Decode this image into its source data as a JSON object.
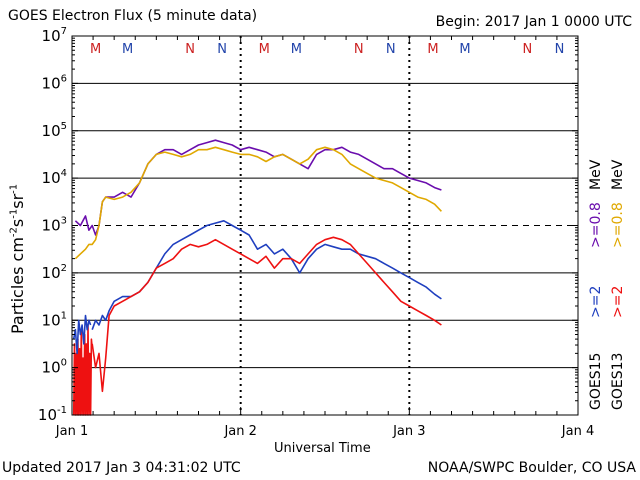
{
  "header": {
    "title": "GOES Electron Flux (5 minute data)",
    "begin": "Begin: 2017 Jan 1 0000 UTC"
  },
  "footer": {
    "updated": "Updated 2017 Jan  3 04:31:02 UTC",
    "source": "NOAA/SWPC Boulder, CO USA"
  },
  "legend": {
    "goes15_label": "GOES15",
    "goes13_label": "GOES13",
    "goes15_2mev": ">=2",
    "goes13_2mev": ">=2",
    "goes15_08mev": ">=0.8",
    "goes13_08mev": ">=0.8",
    "unit": "MeV"
  },
  "colors": {
    "goes15_08": "#6a0dad",
    "goes13_08": "#e0a800",
    "goes15_2": "#1f3fbf",
    "goes13_2": "#ee1111",
    "marker_m": "#cc2222",
    "marker_n_red": "#cc2222",
    "marker_n_blue": "#2244aa"
  },
  "chart_data": {
    "type": "line",
    "title": "GOES Electron Flux (5 minute data)",
    "xlabel": "Universal Time",
    "ylabel": "Particles cm-2 s-1 sr-1",
    "yscale": "log",
    "ylim_exp": [
      -1,
      7
    ],
    "y_tick_exponents": [
      -1,
      0,
      1,
      2,
      3,
      4,
      5,
      6,
      7
    ],
    "xlim_days": [
      0,
      3
    ],
    "x_ticks": [
      {
        "day": 0,
        "label": "Jan 1"
      },
      {
        "day": 1,
        "label": "Jan 2"
      },
      {
        "day": 2,
        "label": "Jan 3"
      },
      {
        "day": 3,
        "label": "Jan 4"
      }
    ],
    "dashed_threshold_exp": 3,
    "midnight_noon_days": [
      1,
      2
    ],
    "markers": [
      {
        "day": 0.14,
        "label": "M",
        "color": "red"
      },
      {
        "day": 0.33,
        "label": "M",
        "color": "blue"
      },
      {
        "day": 0.7,
        "label": "N",
        "color": "red"
      },
      {
        "day": 0.89,
        "label": "N",
        "color": "blue"
      },
      {
        "day": 1.14,
        "label": "M",
        "color": "red"
      },
      {
        "day": 1.33,
        "label": "M",
        "color": "blue"
      },
      {
        "day": 1.7,
        "label": "N",
        "color": "red"
      },
      {
        "day": 1.89,
        "label": "N",
        "color": "blue"
      },
      {
        "day": 2.14,
        "label": "M",
        "color": "red"
      },
      {
        "day": 2.33,
        "label": "M",
        "color": "blue"
      },
      {
        "day": 2.7,
        "label": "N",
        "color": "red"
      },
      {
        "day": 2.89,
        "label": "N",
        "color": "blue"
      }
    ],
    "series": [
      {
        "name": "GOES15 >=0.8 MeV",
        "color": "#6a0dad",
        "x": [
          0.02,
          0.05,
          0.08,
          0.1,
          0.12,
          0.14,
          0.16,
          0.18,
          0.2,
          0.25,
          0.3,
          0.35,
          0.4,
          0.45,
          0.5,
          0.55,
          0.6,
          0.65,
          0.7,
          0.75,
          0.8,
          0.85,
          0.9,
          0.95,
          1.0,
          1.05,
          1.1,
          1.15,
          1.2,
          1.25,
          1.3,
          1.35,
          1.4,
          1.45,
          1.5,
          1.55,
          1.6,
          1.65,
          1.7,
          1.75,
          1.8,
          1.85,
          1.9,
          1.95,
          2.0,
          2.05,
          2.1,
          2.15,
          2.19
        ],
        "log": [
          3.1,
          3.0,
          3.2,
          2.9,
          3.0,
          2.8,
          3.0,
          3.5,
          3.6,
          3.6,
          3.7,
          3.6,
          3.9,
          4.3,
          4.5,
          4.6,
          4.6,
          4.5,
          4.6,
          4.7,
          4.75,
          4.8,
          4.75,
          4.7,
          4.6,
          4.65,
          4.6,
          4.55,
          4.45,
          4.5,
          4.4,
          4.3,
          4.2,
          4.5,
          4.6,
          4.6,
          4.65,
          4.55,
          4.5,
          4.4,
          4.3,
          4.2,
          4.2,
          4.1,
          4.0,
          3.95,
          3.9,
          3.8,
          3.75
        ]
      },
      {
        "name": "GOES13 >=0.8 MeV",
        "color": "#e0a800",
        "x": [
          0.02,
          0.05,
          0.08,
          0.1,
          0.12,
          0.14,
          0.16,
          0.18,
          0.2,
          0.25,
          0.3,
          0.35,
          0.4,
          0.45,
          0.5,
          0.55,
          0.6,
          0.65,
          0.7,
          0.75,
          0.8,
          0.85,
          0.9,
          0.95,
          1.0,
          1.05,
          1.1,
          1.15,
          1.2,
          1.25,
          1.3,
          1.35,
          1.4,
          1.45,
          1.5,
          1.55,
          1.6,
          1.65,
          1.7,
          1.75,
          1.8,
          1.85,
          1.9,
          1.95,
          2.0,
          2.05,
          2.1,
          2.15,
          2.19
        ],
        "log": [
          2.3,
          2.4,
          2.5,
          2.6,
          2.6,
          2.7,
          3.0,
          3.5,
          3.6,
          3.55,
          3.6,
          3.7,
          3.9,
          4.3,
          4.5,
          4.55,
          4.5,
          4.45,
          4.5,
          4.6,
          4.6,
          4.65,
          4.6,
          4.55,
          4.5,
          4.5,
          4.45,
          4.35,
          4.45,
          4.5,
          4.4,
          4.3,
          4.4,
          4.6,
          4.65,
          4.6,
          4.5,
          4.3,
          4.2,
          4.1,
          4.0,
          3.95,
          3.9,
          3.8,
          3.7,
          3.6,
          3.55,
          3.45,
          3.3
        ]
      },
      {
        "name": "GOES15 >=2 MeV",
        "color": "#1f3fbf",
        "x": [
          0.12,
          0.14,
          0.16,
          0.18,
          0.2,
          0.22,
          0.25,
          0.3,
          0.35,
          0.4,
          0.45,
          0.5,
          0.55,
          0.6,
          0.65,
          0.7,
          0.75,
          0.8,
          0.85,
          0.9,
          0.95,
          1.0,
          1.05,
          1.1,
          1.15,
          1.2,
          1.25,
          1.3,
          1.35,
          1.4,
          1.45,
          1.5,
          1.55,
          1.6,
          1.65,
          1.7,
          1.75,
          1.8,
          1.85,
          1.9,
          1.95,
          2.0,
          2.05,
          2.1,
          2.15,
          2.19
        ],
        "log": [
          0.8,
          1.0,
          0.9,
          1.1,
          1.0,
          1.2,
          1.4,
          1.5,
          1.5,
          1.6,
          1.8,
          2.1,
          2.4,
          2.6,
          2.7,
          2.8,
          2.9,
          3.0,
          3.05,
          3.1,
          3.0,
          2.9,
          2.8,
          2.5,
          2.6,
          2.4,
          2.5,
          2.3,
          2.0,
          2.3,
          2.5,
          2.6,
          2.55,
          2.5,
          2.5,
          2.4,
          2.35,
          2.3,
          2.2,
          2.1,
          2.0,
          1.9,
          1.8,
          1.7,
          1.55,
          1.45
        ]
      },
      {
        "name": "GOES13 >=2 MeV",
        "color": "#ee1111",
        "x": [
          0.12,
          0.14,
          0.16,
          0.18,
          0.2,
          0.22,
          0.25,
          0.3,
          0.35,
          0.4,
          0.45,
          0.5,
          0.55,
          0.6,
          0.65,
          0.7,
          0.75,
          0.8,
          0.85,
          0.9,
          0.95,
          1.0,
          1.05,
          1.1,
          1.15,
          1.2,
          1.25,
          1.3,
          1.35,
          1.4,
          1.45,
          1.5,
          1.55,
          1.6,
          1.65,
          1.7,
          1.75,
          1.8,
          1.85,
          1.9,
          1.95,
          2.0,
          2.05,
          2.1,
          2.15,
          2.19
        ],
        "log": [
          0.5,
          0.0,
          0.3,
          -0.5,
          0.2,
          1.1,
          1.3,
          1.4,
          1.5,
          1.6,
          1.8,
          2.1,
          2.2,
          2.3,
          2.5,
          2.6,
          2.55,
          2.6,
          2.7,
          2.6,
          2.5,
          2.4,
          2.3,
          2.2,
          2.35,
          2.1,
          2.3,
          2.3,
          2.2,
          2.4,
          2.6,
          2.7,
          2.75,
          2.7,
          2.6,
          2.4,
          2.2,
          2.0,
          1.8,
          1.6,
          1.4,
          1.3,
          1.2,
          1.1,
          1.0,
          0.9
        ]
      },
      {
        "name": "GOES13 >=2 MeV spikes",
        "color": "#ee1111",
        "x": [
          0.01,
          0.015,
          0.02,
          0.025,
          0.03,
          0.035,
          0.04,
          0.045,
          0.05,
          0.055,
          0.06,
          0.065,
          0.07,
          0.075,
          0.08,
          0.085,
          0.09,
          0.095,
          0.1,
          0.105,
          0.11,
          0.115,
          0.12
        ],
        "log": [
          -1.0,
          0.5,
          -1.0,
          0.3,
          -1.0,
          0.6,
          -1.0,
          0.4,
          -1.0,
          0.8,
          -1.0,
          0.2,
          -1.0,
          0.7,
          -1.0,
          0.5,
          -1.0,
          0.9,
          -1.0,
          0.3,
          -1.0,
          0.6,
          0.4
        ]
      },
      {
        "name": "GOES15 >=2 MeV spikes",
        "color": "#1f3fbf",
        "x": [
          0.01,
          0.02,
          0.03,
          0.04,
          0.05,
          0.06,
          0.07,
          0.08,
          0.09,
          0.1,
          0.11
        ],
        "log": [
          0.6,
          0.8,
          0.3,
          1.0,
          0.7,
          0.9,
          0.5,
          1.1,
          0.8,
          1.0,
          0.9
        ]
      }
    ]
  }
}
